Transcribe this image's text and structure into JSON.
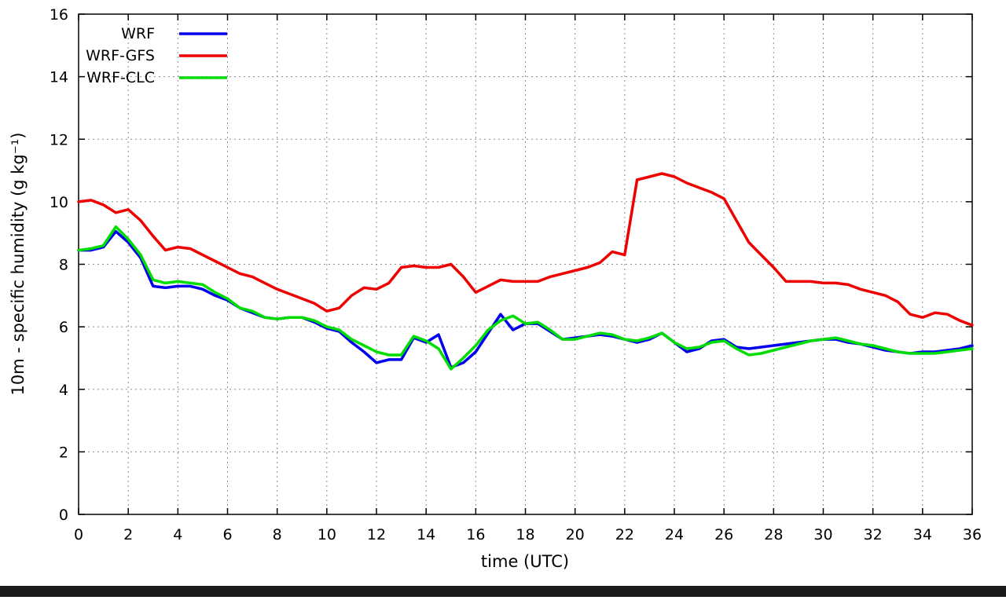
{
  "page": {
    "background_color": "#ffffff",
    "bottom_bar_color": "#1a1a1a"
  },
  "chart_data": {
    "type": "line",
    "title": "",
    "xlabel": "time (UTC)",
    "ylabel": "10m - specific humidity (g kg⁻¹)",
    "xlim": [
      0,
      36
    ],
    "ylim": [
      0,
      16
    ],
    "xticks": [
      0,
      2,
      4,
      6,
      8,
      10,
      12,
      14,
      16,
      18,
      20,
      22,
      24,
      26,
      28,
      30,
      32,
      34,
      36
    ],
    "yticks": [
      0,
      2,
      4,
      6,
      8,
      10,
      12,
      14,
      16
    ],
    "grid": true,
    "legend_position": "inside-top-left",
    "x": [
      0,
      0.5,
      1,
      1.5,
      2,
      2.5,
      3,
      3.5,
      4,
      4.5,
      5,
      5.5,
      6,
      6.5,
      7,
      7.5,
      8,
      8.5,
      9,
      9.5,
      10,
      10.5,
      11,
      11.5,
      12,
      12.5,
      13,
      13.5,
      14,
      14.5,
      15,
      15.5,
      16,
      16.5,
      17,
      17.5,
      18,
      18.5,
      19,
      19.5,
      20,
      20.5,
      21,
      21.5,
      22,
      22.5,
      23,
      23.5,
      24,
      24.5,
      25,
      25.5,
      26,
      26.5,
      27,
      27.5,
      28,
      28.5,
      29,
      29.5,
      30,
      30.5,
      31,
      31.5,
      32,
      32.5,
      33,
      33.5,
      34,
      34.5,
      35,
      35.5,
      36
    ],
    "series": [
      {
        "name": "WRF",
        "color": "#0000ee",
        "values": [
          8.45,
          8.45,
          8.55,
          9.05,
          8.7,
          8.2,
          7.3,
          7.25,
          7.3,
          7.3,
          7.2,
          7.0,
          6.85,
          6.6,
          6.45,
          6.3,
          6.25,
          6.3,
          6.3,
          6.15,
          5.95,
          5.85,
          5.5,
          5.2,
          4.85,
          4.95,
          4.95,
          5.65,
          5.5,
          5.75,
          4.7,
          4.85,
          5.2,
          5.8,
          6.4,
          5.9,
          6.1,
          6.1,
          5.85,
          5.6,
          5.65,
          5.7,
          5.75,
          5.7,
          5.6,
          5.5,
          5.6,
          5.8,
          5.5,
          5.2,
          5.3,
          5.55,
          5.6,
          5.35,
          5.3,
          5.35,
          5.4,
          5.45,
          5.5,
          5.55,
          5.6,
          5.6,
          5.5,
          5.45,
          5.35,
          5.25,
          5.2,
          5.15,
          5.2,
          5.2,
          5.25,
          5.3,
          5.4
        ]
      },
      {
        "name": "WRF-GFS",
        "color": "#ee0000",
        "values": [
          10.0,
          10.05,
          9.9,
          9.65,
          9.75,
          9.4,
          8.9,
          8.45,
          8.55,
          8.5,
          8.3,
          8.1,
          7.9,
          7.7,
          7.6,
          7.4,
          7.2,
          7.05,
          6.9,
          6.75,
          6.5,
          6.6,
          7.0,
          7.25,
          7.2,
          7.4,
          7.9,
          7.95,
          7.9,
          7.9,
          8.0,
          7.6,
          7.1,
          7.3,
          7.5,
          7.45,
          7.45,
          7.45,
          7.6,
          7.7,
          7.8,
          7.9,
          8.05,
          8.4,
          8.3,
          10.7,
          10.8,
          10.9,
          10.8,
          10.6,
          10.45,
          10.3,
          10.1,
          9.4,
          8.7,
          8.3,
          7.9,
          7.45,
          7.45,
          7.45,
          7.4,
          7.4,
          7.35,
          7.2,
          7.1,
          7.0,
          6.8,
          6.4,
          6.3,
          6.45,
          6.4,
          6.2,
          6.05
        ]
      },
      {
        "name": "WRF-CLC",
        "color": "#00dd00",
        "values": [
          8.45,
          8.5,
          8.6,
          9.2,
          8.8,
          8.3,
          7.5,
          7.4,
          7.45,
          7.4,
          7.35,
          7.1,
          6.9,
          6.6,
          6.5,
          6.3,
          6.25,
          6.3,
          6.3,
          6.2,
          6.0,
          5.9,
          5.6,
          5.4,
          5.2,
          5.1,
          5.1,
          5.7,
          5.55,
          5.3,
          4.65,
          5.0,
          5.4,
          5.9,
          6.2,
          6.35,
          6.1,
          6.15,
          5.9,
          5.6,
          5.6,
          5.7,
          5.8,
          5.75,
          5.6,
          5.55,
          5.65,
          5.8,
          5.5,
          5.3,
          5.35,
          5.5,
          5.55,
          5.3,
          5.1,
          5.15,
          5.25,
          5.35,
          5.45,
          5.55,
          5.6,
          5.65,
          5.55,
          5.45,
          5.4,
          5.3,
          5.2,
          5.15,
          5.15,
          5.15,
          5.2,
          5.25,
          5.3
        ]
      }
    ]
  }
}
